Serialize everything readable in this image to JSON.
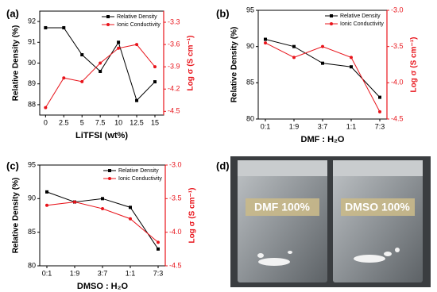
{
  "chart_data": [
    {
      "type": "line",
      "panel_label": "(a)",
      "xlabel": "LiTFSI (wt%)",
      "ylabel": "Relative Density (%)",
      "y2label": "Log σ (S cm⁻¹)",
      "x": [
        0,
        2.5,
        5,
        7.5,
        10,
        12.5,
        15
      ],
      "xlim": [
        -0.8,
        16.2
      ],
      "xticks": [
        0,
        2.5,
        5,
        7.5,
        10,
        12.5,
        15
      ],
      "ylim": [
        87.5,
        92.5
      ],
      "yticks": [
        88,
        89,
        90,
        91,
        92
      ],
      "y2lim": [
        -4.55,
        -3.15
      ],
      "y2ticks": [
        -3.3,
        -3.6,
        -3.9,
        -4.2,
        -4.5
      ],
      "legend": "upper right",
      "series": [
        {
          "name": "Relative Density",
          "color": "#000000",
          "values": [
            91.7,
            91.7,
            90.4,
            89.6,
            91.0,
            88.2,
            89.1
          ]
        },
        {
          "name": "Ionic Conductivity",
          "color": "#e8141b",
          "axis": "y2",
          "values": [
            -4.45,
            -4.05,
            -4.1,
            -3.85,
            -3.65,
            -3.6,
            -3.9
          ]
        }
      ]
    },
    {
      "type": "line",
      "panel_label": "(b)",
      "xlabel": "DMF : H₂O",
      "ylabel": "Relative Density (%)",
      "y2label": "Log σ (S cm⁻¹)",
      "categories": [
        "0:1",
        "1:9",
        "3:7",
        "1:1",
        "7:3"
      ],
      "ylim": [
        80,
        95
      ],
      "yticks": [
        80,
        85,
        90,
        95
      ],
      "y2lim": [
        -4.5,
        -3.0
      ],
      "y2ticks": [
        {
          "value": -3,
          "label": "-3.0"
        },
        -3.5,
        {
          "value": -4,
          "label": "-4.0"
        },
        -4.5
      ],
      "legend": "upper right",
      "series": [
        {
          "name": "Relative Density",
          "color": "#000000",
          "values": [
            91,
            90,
            87.7,
            87.2,
            83
          ]
        },
        {
          "name": "Ionic Conductivity",
          "color": "#e8141b",
          "axis": "y2",
          "values": [
            -3.45,
            -3.65,
            -3.5,
            -3.65,
            -4.4
          ]
        }
      ]
    },
    {
      "type": "line",
      "panel_label": "(c)",
      "xlabel": "DMSO : H₂O",
      "ylabel": "Relative Density (%)",
      "y2label": "Log σ (S cm⁻¹)",
      "categories": [
        "0:1",
        "1:9",
        "3:7",
        "1:1",
        "7:3"
      ],
      "ylim": [
        80,
        95
      ],
      "yticks": [
        80,
        85,
        90,
        95
      ],
      "y2lim": [
        -4.5,
        -3.0
      ],
      "y2ticks": [
        {
          "value": -3,
          "label": "-3.0"
        },
        -3.5,
        {
          "value": -4,
          "label": "-4.0"
        },
        -4.5
      ],
      "legend": "upper right",
      "series": [
        {
          "name": "Relative Density",
          "color": "#000000",
          "values": [
            91,
            89.5,
            90,
            88.7,
            82.5
          ]
        },
        {
          "name": "Ionic Conductivity",
          "color": "#e8141b",
          "axis": "y2",
          "values": [
            -3.6,
            -3.55,
            -3.65,
            -3.8,
            -4.15
          ]
        }
      ]
    }
  ],
  "photo": {
    "panel_label": "(d)",
    "captions": [
      "DMF 100%",
      "DMSO 100%"
    ]
  }
}
